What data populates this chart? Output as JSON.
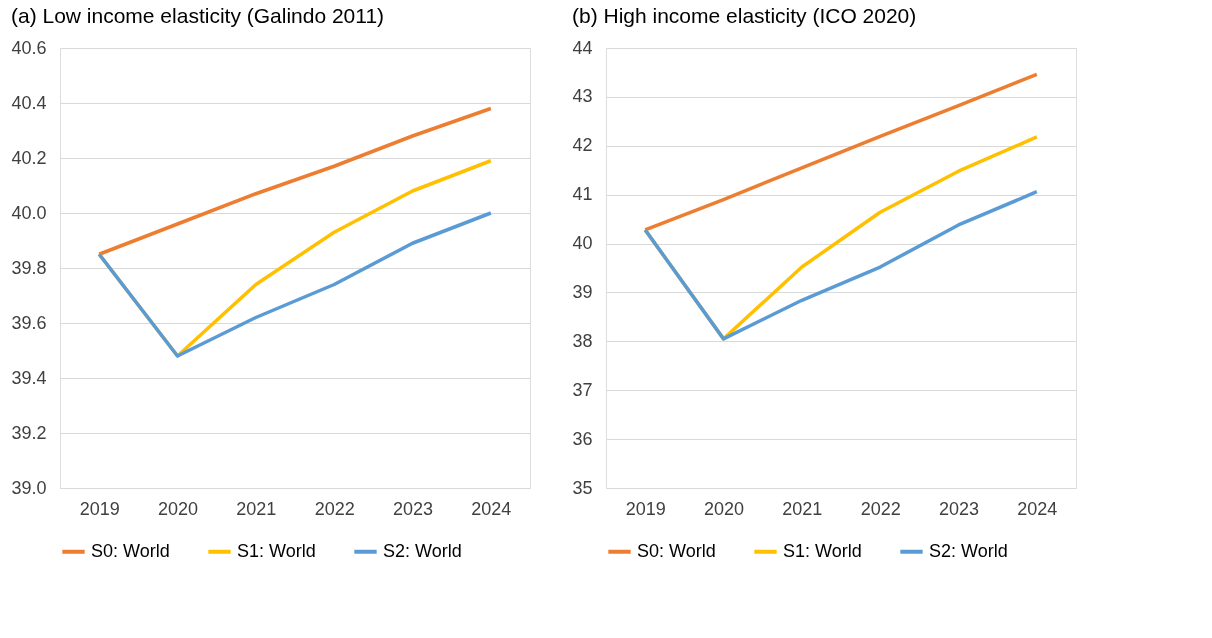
{
  "chart_data": [
    {
      "type": "line",
      "title": "(a) Low income elasticity (Galindo 2011)",
      "categories": [
        "2019",
        "2020",
        "2021",
        "2022",
        "2023",
        "2024"
      ],
      "ylim": [
        39.0,
        40.6
      ],
      "yticks": [
        {
          "value": 39.0,
          "label": "39.0"
        },
        {
          "value": 39.2,
          "label": "39.2"
        },
        {
          "value": 39.4,
          "label": "39.4"
        },
        {
          "value": 39.6,
          "label": "39.6"
        },
        {
          "value": 39.8,
          "label": "39.8"
        },
        {
          "value": 40.0,
          "label": "40.0"
        },
        {
          "value": 40.2,
          "label": "40.2"
        },
        {
          "value": 40.4,
          "label": "40.4"
        },
        {
          "value": 40.6,
          "label": "40.6"
        }
      ],
      "grid": "y",
      "legend": "bottom",
      "marker": "none",
      "line_style": "solid",
      "series": [
        {
          "name": "S0: World",
          "color": "#ed7d31",
          "values": [
            39.85,
            39.96,
            40.07,
            40.17,
            40.28,
            40.38
          ]
        },
        {
          "name": "S1: World",
          "color": "#ffc000",
          "values": [
            39.85,
            39.48,
            39.74,
            39.93,
            40.08,
            40.19
          ]
        },
        {
          "name": "S2: World",
          "color": "#5b9bd5",
          "values": [
            39.85,
            39.48,
            39.62,
            39.74,
            39.89,
            40.0
          ]
        }
      ]
    },
    {
      "type": "line",
      "title": "(b) High income elasticity (ICO 2020)",
      "categories": [
        "2019",
        "2020",
        "2021",
        "2022",
        "2023",
        "2024"
      ],
      "ylim": [
        35,
        44
      ],
      "yticks": [
        35,
        36,
        37,
        38,
        39,
        40,
        41,
        42,
        43,
        44
      ],
      "grid": "y",
      "legend": "bottom",
      "marker": "none",
      "line_style": "solid",
      "series": [
        {
          "name": "S0: World",
          "color": "#ed7d31",
          "values": [
            40.28,
            40.9,
            41.55,
            42.19,
            42.82,
            43.46
          ]
        },
        {
          "name": "S1: World",
          "color": "#ffc000",
          "values": [
            40.28,
            38.05,
            39.52,
            40.64,
            41.48,
            42.18
          ]
        },
        {
          "name": "S2: World",
          "color": "#5b9bd5",
          "values": [
            40.28,
            38.05,
            38.84,
            39.52,
            40.38,
            41.06
          ]
        }
      ]
    }
  ]
}
